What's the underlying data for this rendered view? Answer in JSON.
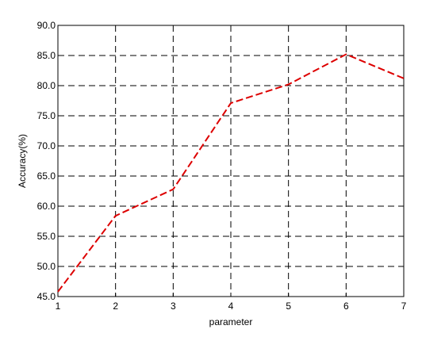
{
  "chart_data": {
    "type": "line",
    "title": "",
    "xlabel": "parameter",
    "ylabel": "Accuracy(%)",
    "x": [
      1,
      2,
      3,
      4,
      5,
      6,
      7
    ],
    "xlim": [
      1,
      7
    ],
    "ylim": [
      45,
      90
    ],
    "x_ticks": [
      1,
      2,
      3,
      4,
      5,
      6,
      7
    ],
    "x_tick_labels": [
      "1",
      "2",
      "3",
      "4",
      "5",
      "6",
      "7"
    ],
    "y_ticks": [
      45,
      50,
      55,
      60,
      65,
      70,
      75,
      80,
      85,
      90
    ],
    "y_tick_labels": [
      "45.0",
      "50.0",
      "55.0",
      "60.0",
      "65.0",
      "70.0",
      "75.0",
      "80.0",
      "85.0",
      "90.0"
    ],
    "grid": true,
    "grid_style": "dashed",
    "series": [
      {
        "values": [
          45.8,
          58.4,
          62.8,
          77.1,
          80.2,
          85.2,
          81.2
        ],
        "color": "#dd0000",
        "line_style": "dashed"
      }
    ]
  }
}
